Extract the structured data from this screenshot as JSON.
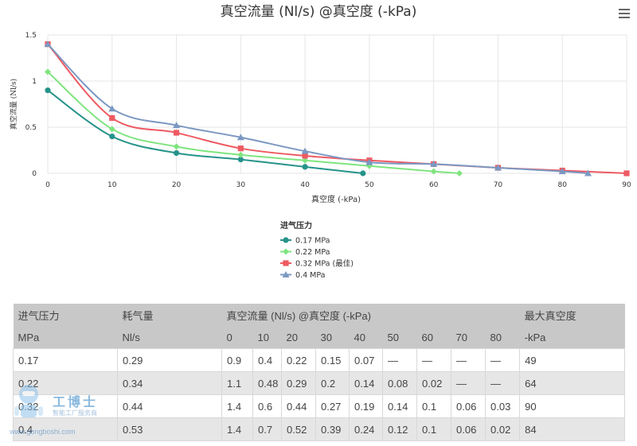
{
  "menu_icon": "hamburger-menu-icon",
  "chart_data": {
    "type": "line",
    "title": "真空流量 (Nl/s) @真空度 (-kPa)",
    "xlabel": "真空度 (-kPa)",
    "ylabel": "真空流量 (Nl/s)",
    "xlim": [
      0,
      90
    ],
    "ylim": [
      0,
      1.5
    ],
    "x_ticks": [
      0,
      10,
      20,
      30,
      40,
      50,
      60,
      70,
      80,
      90
    ],
    "y_ticks": [
      0,
      0.5,
      1,
      1.5
    ],
    "y_tick_labels": [
      "0",
      "0.5",
      "1",
      "1.5"
    ],
    "grid": true,
    "legend_title": "进气压力",
    "legend_position": "bottom-center",
    "series": [
      {
        "name": "0.17 MPa",
        "color": "#25938a",
        "marker": "circle",
        "x": [
          0,
          10,
          20,
          30,
          40,
          49
        ],
        "y": [
          0.9,
          0.4,
          0.22,
          0.15,
          0.07,
          0
        ]
      },
      {
        "name": "0.22 MPa",
        "color": "#7fe57f",
        "marker": "diamond",
        "x": [
          0,
          10,
          20,
          30,
          40,
          50,
          60,
          64
        ],
        "y": [
          1.1,
          0.48,
          0.29,
          0.2,
          0.14,
          0.08,
          0.02,
          0
        ]
      },
      {
        "name": "0.32 MPa (最佳)",
        "color": "#ee5a62",
        "marker": "square",
        "x": [
          0,
          10,
          20,
          30,
          40,
          50,
          60,
          70,
          80,
          90
        ],
        "y": [
          1.4,
          0.6,
          0.44,
          0.27,
          0.19,
          0.14,
          0.1,
          0.06,
          0.03,
          0
        ]
      },
      {
        "name": "0.4 MPa",
        "color": "#7b98c2",
        "marker": "triangle",
        "x": [
          0,
          10,
          20,
          30,
          40,
          50,
          60,
          70,
          80,
          84
        ],
        "y": [
          1.4,
          0.7,
          0.52,
          0.39,
          0.24,
          0.12,
          0.1,
          0.06,
          0.02,
          0
        ]
      }
    ]
  },
  "table": {
    "header_row1": [
      "进气压力",
      "耗气量",
      "真空流量 (Nl/s) @真空度 (-kPa)",
      "最大真空度"
    ],
    "header_row2": [
      "MPa",
      "Nl/s",
      "0",
      "10",
      "20",
      "30",
      "40",
      "50",
      "60",
      "70",
      "80",
      "-kPa"
    ],
    "rows": [
      [
        "0.17",
        "0.29",
        "0.9",
        "0.4",
        "0.22",
        "0.15",
        "0.07",
        "—",
        "—",
        "—",
        "—",
        "49"
      ],
      [
        "0.22",
        "0.34",
        "1.1",
        "0.48",
        "0.29",
        "0.2",
        "0.14",
        "0.08",
        "0.02",
        "—",
        "—",
        "64"
      ],
      [
        "0.32",
        "0.44",
        "1.4",
        "0.6",
        "0.44",
        "0.27",
        "0.19",
        "0.14",
        "0.1",
        "0.06",
        "0.03",
        "90"
      ],
      [
        "0.4",
        "0.53",
        "1.4",
        "0.7",
        "0.52",
        "0.39",
        "0.24",
        "0.12",
        "0.1",
        "0.06",
        "0.02",
        "84"
      ]
    ]
  },
  "watermark": {
    "name_cn": "工博士",
    "tagline": "智能工厂服务商",
    "url": "www.gongboshi.com"
  }
}
